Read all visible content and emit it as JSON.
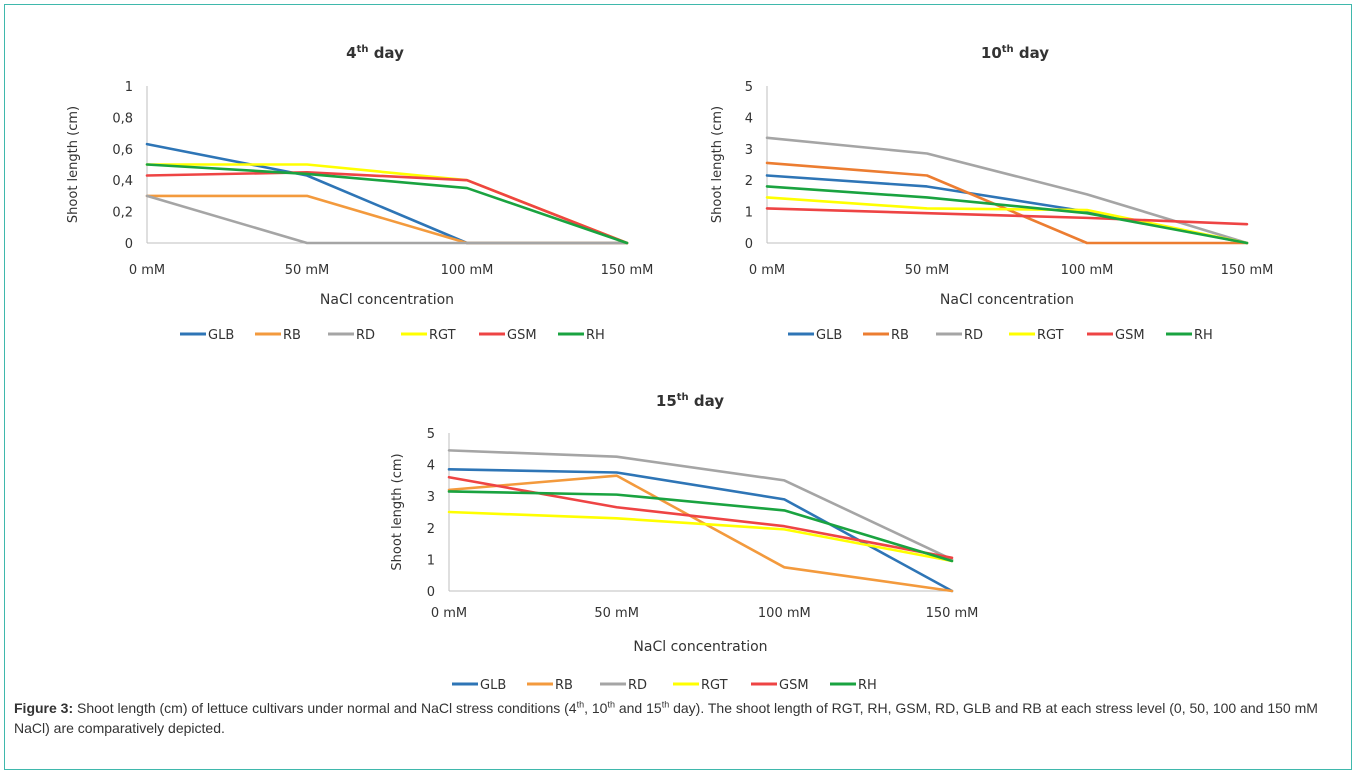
{
  "charts": [
    {
      "title": {
        "base": "4",
        "sup": "th",
        "rest": " day"
      },
      "xlabel": "NaCl concentration",
      "ylabel": "Shoot length (cm)",
      "categories": [
        "0 mM",
        "50 mM",
        "100 mM",
        "150 mM"
      ],
      "yticks": [
        "0",
        "0,2",
        "0,4",
        "0,6",
        "0,8",
        "1"
      ],
      "series": [
        {
          "name": "GLB",
          "color": "#2e75b6",
          "values": [
            0.63,
            0.43,
            0,
            0
          ]
        },
        {
          "name": "RB",
          "color": "#f39a3d",
          "values": [
            0.3,
            0.3,
            0,
            0
          ]
        },
        {
          "name": "RD",
          "color": "#a5a5a5",
          "values": [
            0.3,
            0,
            0,
            0
          ]
        },
        {
          "name": "RGT",
          "color": "#ffff00",
          "values": [
            0.5,
            0.5,
            0.4,
            0
          ]
        },
        {
          "name": "GSM",
          "color": "#ee4444",
          "values": [
            0.43,
            0.45,
            0.4,
            0
          ]
        },
        {
          "name": "RH",
          "color": "#1aa340",
          "values": [
            0.5,
            0.44,
            0.35,
            0
          ]
        }
      ]
    },
    {
      "title": {
        "base": "10",
        "sup": "th",
        "rest": " day"
      },
      "xlabel": "NaCl concentration",
      "ylabel": "Shoot length (cm)",
      "categories": [
        "0 mM",
        "50 mM",
        "100 mM",
        "150 mM"
      ],
      "yticks": [
        "0",
        "1",
        "2",
        "3",
        "4",
        "5"
      ],
      "series": [
        {
          "name": "GLB",
          "color": "#2e75b6",
          "values": [
            2.15,
            1.8,
            1.0,
            0
          ]
        },
        {
          "name": "RB",
          "color": "#ec7d31",
          "values": [
            2.55,
            2.15,
            0,
            0
          ]
        },
        {
          "name": "RD",
          "color": "#a5a5a5",
          "values": [
            3.35,
            2.85,
            1.55,
            0
          ]
        },
        {
          "name": "RGT",
          "color": "#ffff00",
          "values": [
            1.45,
            1.1,
            1.05,
            0
          ]
        },
        {
          "name": "GSM",
          "color": "#ee4444",
          "values": [
            1.1,
            0.95,
            0.8,
            0.6
          ]
        },
        {
          "name": "RH",
          "color": "#1aa340",
          "values": [
            1.8,
            1.45,
            0.95,
            0
          ]
        }
      ]
    },
    {
      "title": {
        "base": "15",
        "sup": "th",
        "rest": " day"
      },
      "xlabel": "NaCl concentration",
      "ylabel": "Shoot length (cm)",
      "categories": [
        "0 mM",
        "50 mM",
        "100 mM",
        "150 mM"
      ],
      "yticks": [
        "0",
        "1",
        "2",
        "3",
        "4",
        "5"
      ],
      "series": [
        {
          "name": "GLB",
          "color": "#2e75b6",
          "values": [
            3.85,
            3.75,
            2.9,
            0
          ]
        },
        {
          "name": "RB",
          "color": "#f39a3d",
          "values": [
            3.2,
            3.65,
            0.75,
            0
          ]
        },
        {
          "name": "RD",
          "color": "#a5a5a5",
          "values": [
            4.45,
            4.25,
            3.5,
            1.0
          ]
        },
        {
          "name": "RGT",
          "color": "#ffff00",
          "values": [
            2.5,
            2.3,
            1.95,
            0.95
          ]
        },
        {
          "name": "GSM",
          "color": "#ee4444",
          "values": [
            3.6,
            2.65,
            2.05,
            1.05
          ]
        },
        {
          "name": "RH",
          "color": "#1aa340",
          "values": [
            3.15,
            3.05,
            2.55,
            0.95
          ]
        }
      ]
    }
  ],
  "chart_data": [
    {
      "type": "line",
      "title": "4th day",
      "xlabel": "NaCl concentration",
      "ylabel": "Shoot length (cm)",
      "categories": [
        "0 mM",
        "50 mM",
        "100 mM",
        "150 mM"
      ],
      "ylim": [
        0,
        1
      ],
      "legend": "bottom",
      "series": [
        {
          "name": "GLB",
          "values": [
            0.63,
            0.43,
            0,
            0
          ]
        },
        {
          "name": "RB",
          "values": [
            0.3,
            0.3,
            0,
            0
          ]
        },
        {
          "name": "RD",
          "values": [
            0.3,
            0,
            0,
            0
          ]
        },
        {
          "name": "RGT",
          "values": [
            0.5,
            0.5,
            0.4,
            0
          ]
        },
        {
          "name": "GSM",
          "values": [
            0.43,
            0.45,
            0.4,
            0
          ]
        },
        {
          "name": "RH",
          "values": [
            0.5,
            0.44,
            0.35,
            0
          ]
        }
      ]
    },
    {
      "type": "line",
      "title": "10th day",
      "xlabel": "NaCl concentration",
      "ylabel": "Shoot length (cm)",
      "categories": [
        "0 mM",
        "50 mM",
        "100 mM",
        "150 mM"
      ],
      "ylim": [
        0,
        5
      ],
      "legend": "bottom",
      "series": [
        {
          "name": "GLB",
          "values": [
            2.15,
            1.8,
            1.0,
            0
          ]
        },
        {
          "name": "RB",
          "values": [
            2.55,
            2.15,
            0,
            0
          ]
        },
        {
          "name": "RD",
          "values": [
            3.35,
            2.85,
            1.55,
            0
          ]
        },
        {
          "name": "RGT",
          "values": [
            1.45,
            1.1,
            1.05,
            0
          ]
        },
        {
          "name": "GSM",
          "values": [
            1.1,
            0.95,
            0.8,
            0.6
          ]
        },
        {
          "name": "RH",
          "values": [
            1.8,
            1.45,
            0.95,
            0
          ]
        }
      ]
    },
    {
      "type": "line",
      "title": "15th day",
      "xlabel": "NaCl concentration",
      "ylabel": "Shoot length (cm)",
      "categories": [
        "0 mM",
        "50 mM",
        "100 mM",
        "150 mM"
      ],
      "ylim": [
        0,
        5
      ],
      "legend": "bottom",
      "series": [
        {
          "name": "GLB",
          "values": [
            3.85,
            3.75,
            2.9,
            0
          ]
        },
        {
          "name": "RB",
          "values": [
            3.2,
            3.65,
            0.75,
            0
          ]
        },
        {
          "name": "RD",
          "values": [
            4.45,
            4.25,
            3.5,
            1.0
          ]
        },
        {
          "name": "RGT",
          "values": [
            2.5,
            2.3,
            1.95,
            0.95
          ]
        },
        {
          "name": "GSM",
          "values": [
            3.6,
            2.65,
            2.05,
            1.05
          ]
        },
        {
          "name": "RH",
          "values": [
            3.15,
            3.05,
            2.55,
            0.95
          ]
        }
      ]
    }
  ],
  "caption": {
    "label": "Figure 3:",
    "part1": " Shoot length (cm) of lettuce cultivars under normal and NaCl stress conditions (4",
    "sup1": "th",
    "part2": ", 10",
    "sup2": "th",
    "part3": " and 15",
    "sup3": "th",
    "part4": " day). The shoot length of RGT, RH, GSM, RD, GLB and RB at each stress level (0, 50, 100 and 150 mM NaCl) are comparatively depicted."
  }
}
